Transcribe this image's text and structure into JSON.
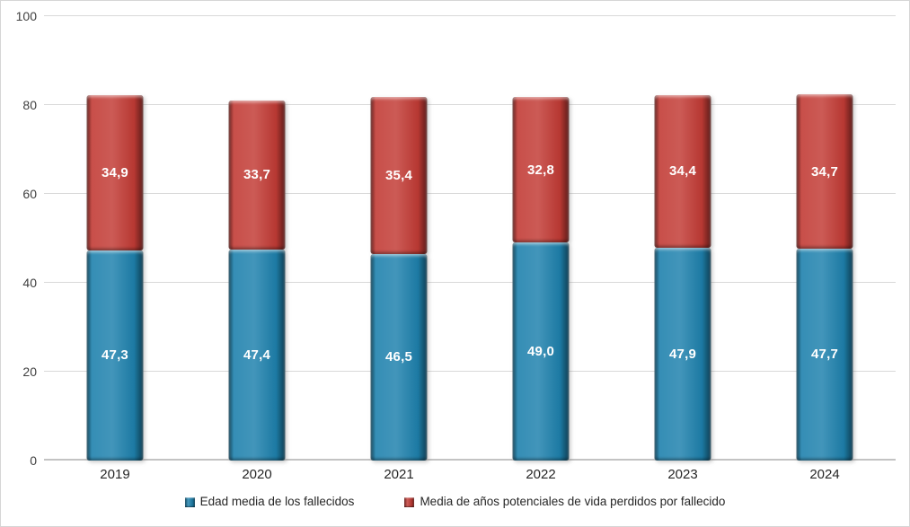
{
  "chart_data": {
    "type": "bar",
    "stacked": true,
    "title": "",
    "categories": [
      "2019",
      "2020",
      "2021",
      "2022",
      "2023",
      "2024"
    ],
    "series": [
      {
        "name": "Edad media de los fallecidos",
        "color": "#1E81AD",
        "values": [
          47.3,
          47.4,
          46.5,
          49.0,
          47.9,
          47.7
        ],
        "value_labels": [
          "47,3",
          "47,4",
          "46,5",
          "49,0",
          "47,9",
          "47,7"
        ]
      },
      {
        "name": "Media de años potenciales de vida perdidos por fallecido",
        "color": "#C23B35",
        "values": [
          34.9,
          33.7,
          35.4,
          32.8,
          34.4,
          34.7
        ],
        "value_labels": [
          "34,9",
          "33,7",
          "35,4",
          "32,8",
          "34,4",
          "34,7"
        ]
      }
    ],
    "ylim": [
      0,
      100
    ],
    "yticks": [
      "0",
      "20",
      "40",
      "60",
      "80",
      "100"
    ],
    "grid": true,
    "legend_position": "bottom",
    "colors": {
      "data_label_text": "#FFFFFF",
      "axis_text": "#3F3F3F",
      "category_text": "#262626",
      "gridline": "#D9D9D9",
      "axis_line": "#C3C3C3",
      "background": "#FFFFFF",
      "border": "#D6D6D6"
    }
  }
}
